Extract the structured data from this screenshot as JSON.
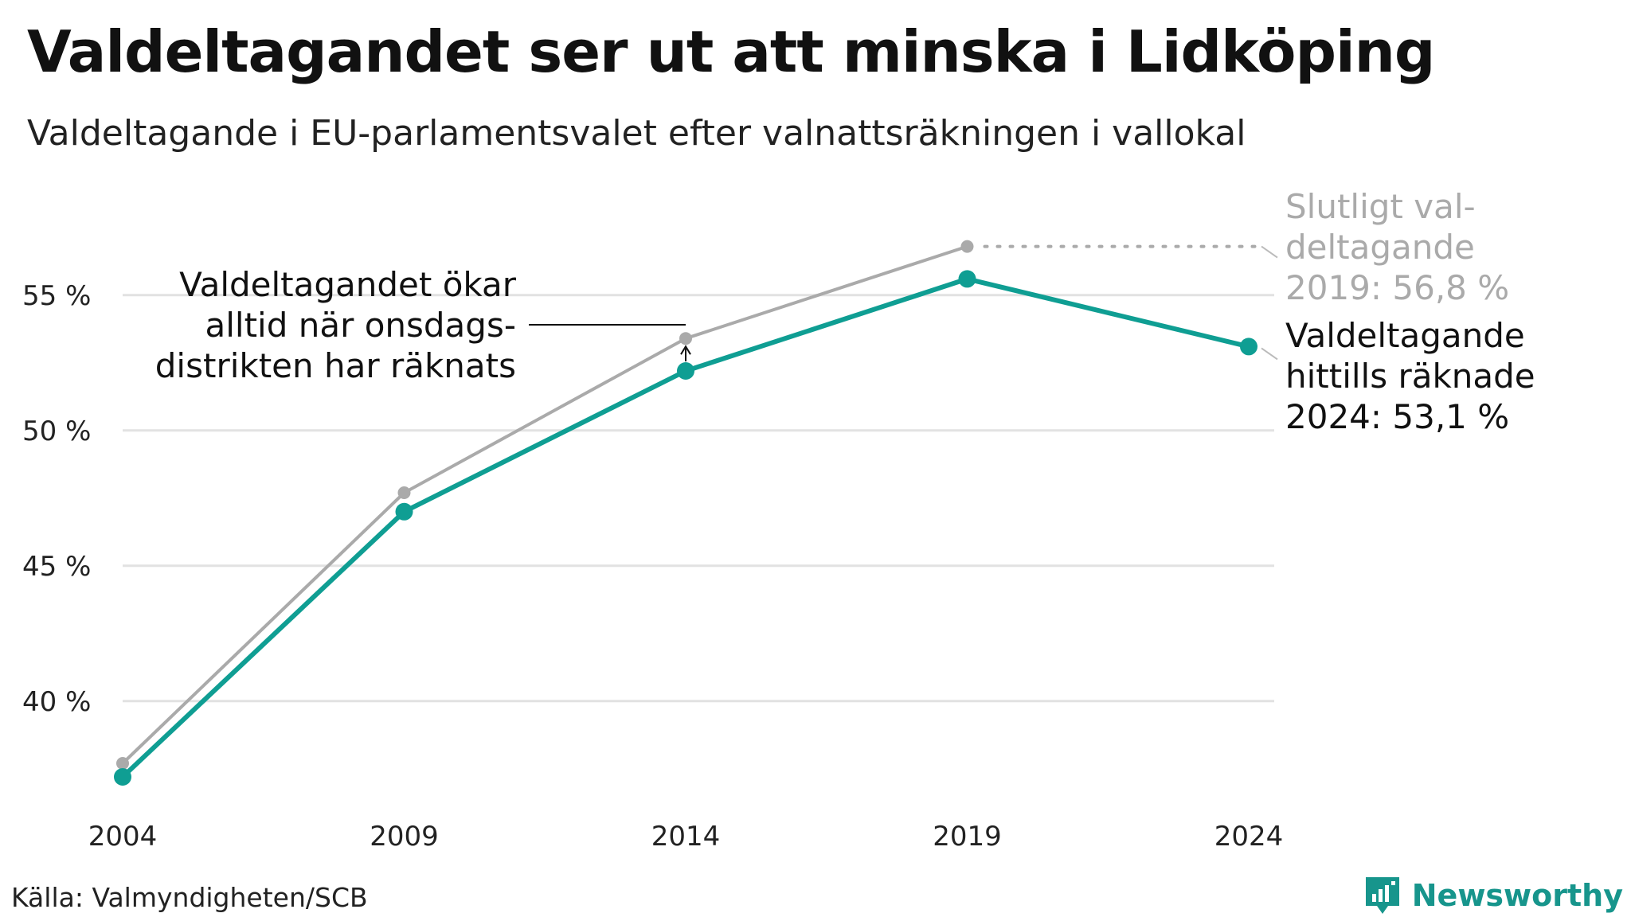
{
  "title": "Valdeltagandet ser ut att minska i Lidköping",
  "subtitle": "Valdeltagande i EU-parlamentsvalet efter valnattsräkningen i vallokal",
  "source": "Källa: Valmyndigheten/SCB",
  "brand": {
    "name": "Newsworthy",
    "icon": "newsworthy-logo-icon",
    "color": "#17958c"
  },
  "chart_data": {
    "type": "line",
    "x": [
      "2004",
      "2009",
      "2014",
      "2019",
      "2024"
    ],
    "y_ticks": [
      40,
      45,
      50,
      55
    ],
    "y_tick_labels": [
      "40 %",
      "45 %",
      "50 %",
      "55 %"
    ],
    "ylim": [
      36.2,
      58.2
    ],
    "grid": true,
    "series": [
      {
        "key": "final",
        "values": [
          37.7,
          47.7,
          53.4,
          56.8,
          null
        ],
        "color": "#aaaaaa"
      },
      {
        "key": "counted",
        "values": [
          37.2,
          47.0,
          52.2,
          55.6,
          53.1
        ],
        "color": "#0f9e93"
      }
    ],
    "annotations": {
      "note_2014": [
        "Valdeltagandet ökar",
        "alltid när onsdags-",
        "distrikten har räknats"
      ],
      "final_label": [
        "Slutligt val-",
        "deltagande",
        "2019: 56,8 %"
      ],
      "counted_label": [
        "Valdeltagande",
        "hittills räknade",
        "2024: 53,1 %"
      ]
    }
  }
}
